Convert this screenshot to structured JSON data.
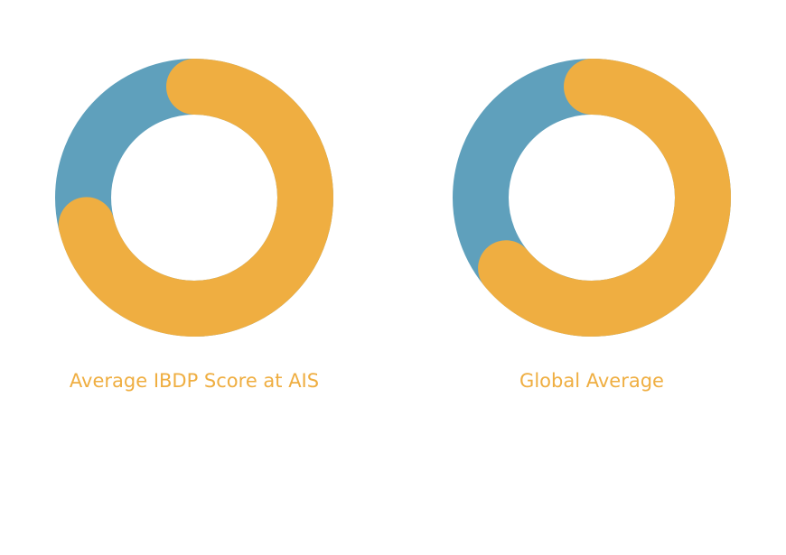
{
  "colors": {
    "track": "#5fa0bc",
    "value": "#efae41",
    "caption": "#efae41",
    "background": "#ffffff"
  },
  "chart_data": [
    {
      "type": "pie",
      "style": "donut",
      "title": "Average IBDP Score at AIS",
      "value_fraction": 0.71,
      "remainder_fraction": 0.29,
      "direction": "clockwise",
      "start": "top",
      "rounded_caps": true
    },
    {
      "type": "pie",
      "style": "donut",
      "title": "Global Average",
      "value_fraction": 0.64,
      "remainder_fraction": 0.36,
      "direction": "clockwise",
      "start": "top",
      "rounded_caps": true
    }
  ]
}
